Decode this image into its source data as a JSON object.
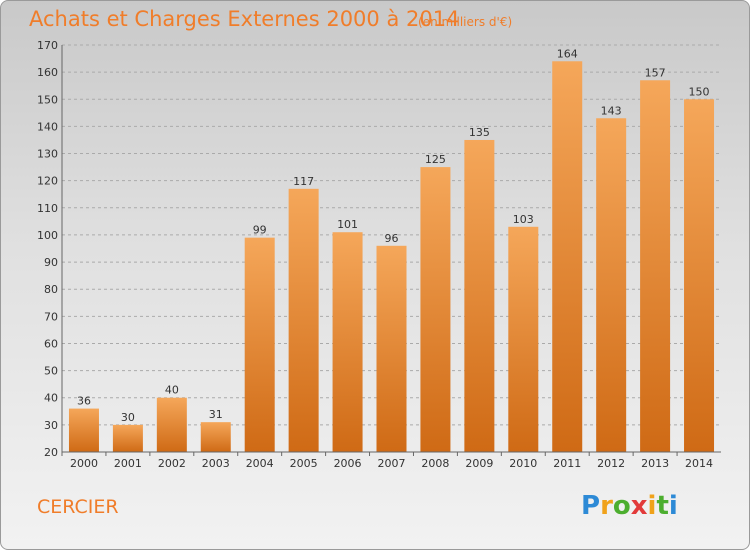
{
  "header": {
    "title": "Achats et Charges Externes 2000 à 2014",
    "subtitle": "(en milliers d'€)"
  },
  "footer": {
    "city": "CERCIER",
    "logo": "Proxiti"
  },
  "colors": {
    "bar_light": "#f5a75a",
    "bar_dark": "#cf6a15",
    "accent": "#f07d2a"
  },
  "chart_data": {
    "type": "bar",
    "title": "Achats et Charges Externes 2000 à 2014",
    "subtitle": "(en milliers d'€)",
    "categories": [
      "2000",
      "2001",
      "2002",
      "2003",
      "2004",
      "2005",
      "2006",
      "2007",
      "2008",
      "2009",
      "2010",
      "2011",
      "2012",
      "2013",
      "2014"
    ],
    "values": [
      36,
      30,
      40,
      31,
      99,
      117,
      101,
      96,
      125,
      135,
      103,
      164,
      143,
      157,
      150
    ],
    "ylim": [
      20,
      170
    ],
    "yticks": [
      20,
      30,
      40,
      50,
      60,
      70,
      80,
      90,
      100,
      110,
      120,
      130,
      140,
      150,
      160,
      170
    ],
    "grid": true,
    "xlabel": "",
    "ylabel": ""
  }
}
